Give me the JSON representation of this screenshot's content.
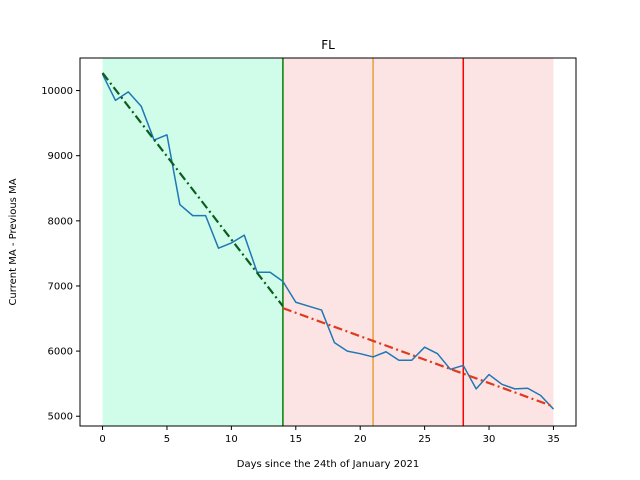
{
  "chart_data": {
    "type": "line",
    "title": "FL",
    "xlabel": "Days since the 24th of January 2021",
    "ylabel": "Current MA - Previous MA",
    "xlim": [
      -1.75,
      36.75
    ],
    "ylim": [
      4850,
      10500
    ],
    "x_ticks": [
      0,
      5,
      10,
      15,
      20,
      25,
      30,
      35
    ],
    "y_ticks": [
      5000,
      6000,
      7000,
      8000,
      9000,
      10000
    ],
    "grid": false,
    "shaded_regions": [
      {
        "x_start": 0,
        "x_end": 14,
        "color": "#d0fcea"
      },
      {
        "x_start": 14,
        "x_end": 35,
        "color": "#fde4e4"
      }
    ],
    "vertical_lines": [
      {
        "x": 14,
        "color": "#008000"
      },
      {
        "x": 21,
        "color": "#e8a03a"
      },
      {
        "x": 28,
        "color": "#ff0000"
      }
    ],
    "series": [
      {
        "color": "#1f77b4",
        "style": "solid",
        "x": [
          0,
          1,
          2,
          3,
          4,
          5,
          6,
          7,
          8,
          9,
          10,
          11,
          12,
          13,
          14,
          15,
          16,
          17,
          18,
          19,
          20,
          21,
          22,
          23,
          24,
          25,
          26,
          27,
          28,
          29,
          30,
          31,
          32,
          33,
          34,
          35
        ],
        "values": [
          10250,
          9850,
          9980,
          9760,
          9240,
          9320,
          8250,
          8080,
          8080,
          7580,
          7660,
          7780,
          7210,
          7210,
          7070,
          6750,
          6690,
          6630,
          6130,
          6000,
          5960,
          5910,
          5990,
          5860,
          5860,
          6060,
          5960,
          5720,
          5780,
          5420,
          5640,
          5490,
          5420,
          5430,
          5320,
          5110
        ]
      },
      {
        "color": "#0b5e1e",
        "style": "dashdot",
        "x": [
          0,
          14
        ],
        "values": [
          10270,
          6690
        ]
      },
      {
        "color": "#e03a1e",
        "style": "dashdot",
        "x": [
          14,
          35
        ],
        "values": [
          6660,
          5150
        ]
      }
    ]
  }
}
